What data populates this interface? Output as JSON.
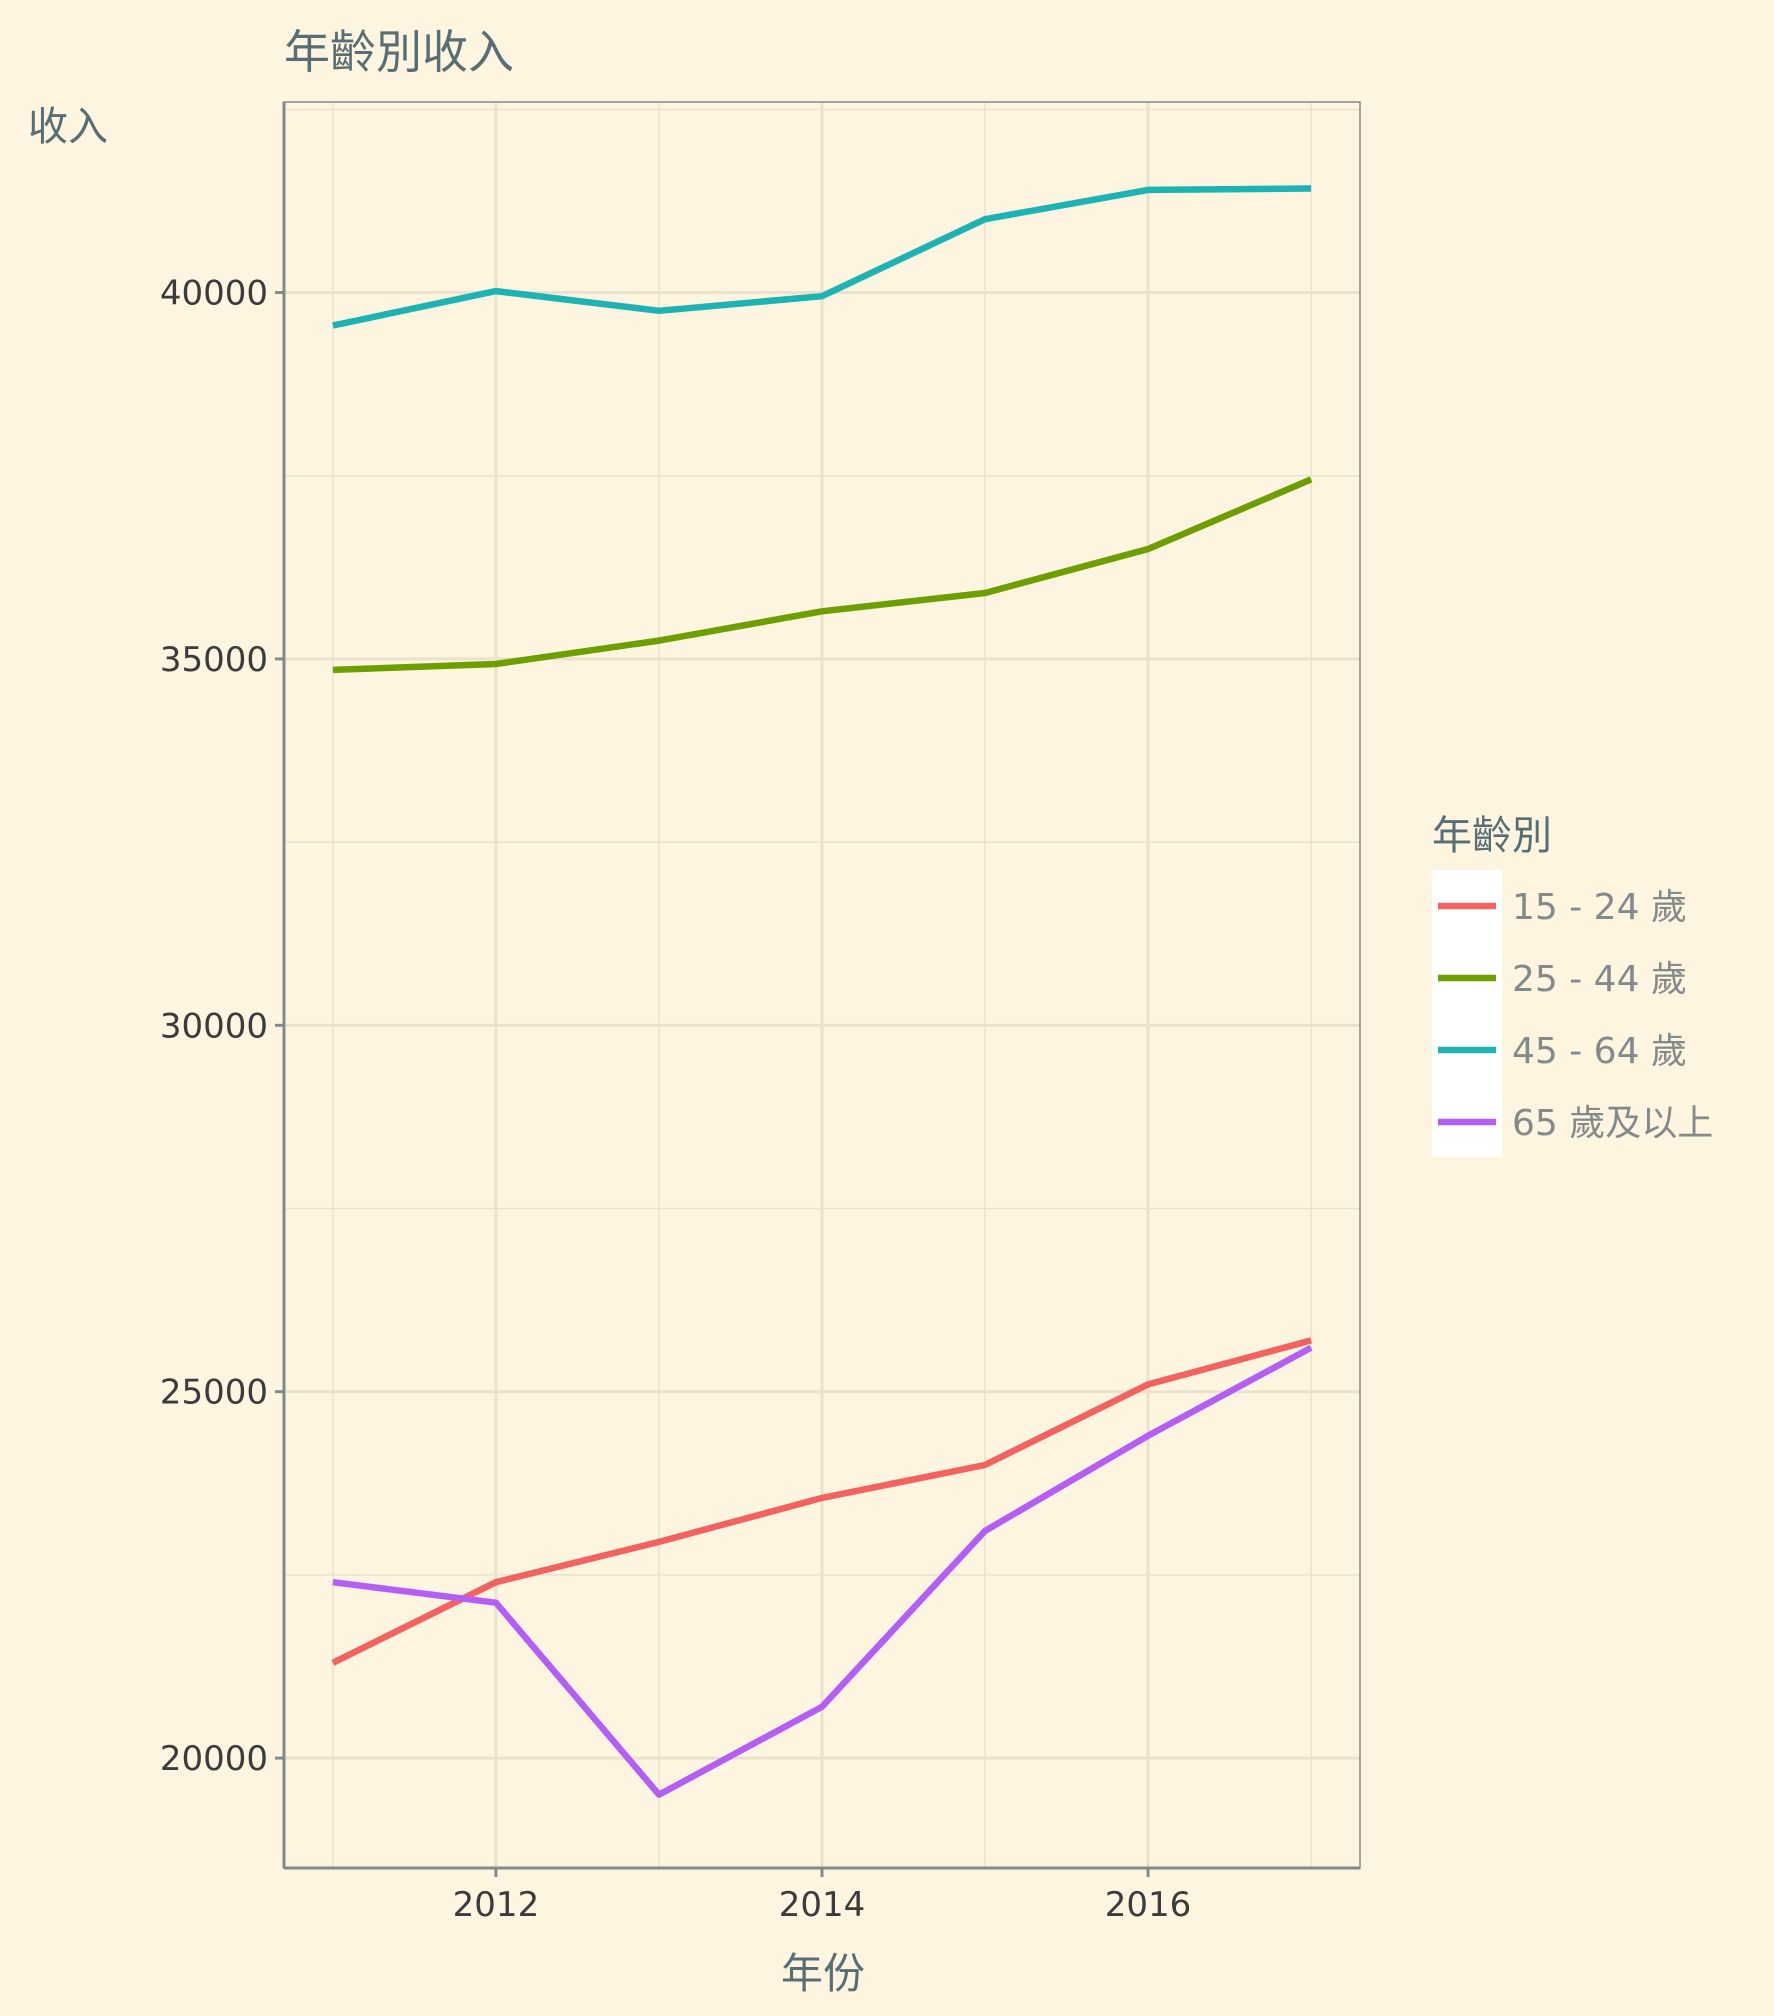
{
  "chart_data": {
    "type": "line",
    "title": "年齡別收入",
    "xlabel": "年份",
    "ylabel": "收入",
    "x": [
      2011,
      2012,
      2013,
      2014,
      2015,
      2016,
      2017
    ],
    "x_ticks": [
      2012,
      2014,
      2016
    ],
    "y_ticks": [
      20000,
      25000,
      30000,
      35000,
      40000
    ],
    "xlim": [
      2010.7,
      2017.3
    ],
    "ylim": [
      18500,
      42600
    ],
    "grid": true,
    "legend": {
      "title": "年齡別",
      "position": "right"
    },
    "series": [
      {
        "name": "15 - 24 歲",
        "color": "#f2635f",
        "values": [
          21300,
          22400,
          22950,
          23550,
          24000,
          25100,
          25700
        ]
      },
      {
        "name": "25 - 44 歲",
        "color": "#6d9f00",
        "values": [
          34850,
          34930,
          35250,
          35650,
          35900,
          36500,
          37450
        ]
      },
      {
        "name": "45 - 64 歲",
        "color": "#1db3b3",
        "values": [
          39550,
          40020,
          39750,
          39950,
          41000,
          41400,
          41420
        ]
      },
      {
        "name": "65 歲及以上",
        "color": "#b45ef4",
        "values": [
          22400,
          22120,
          19500,
          20700,
          23100,
          24400,
          25600
        ]
      }
    ]
  },
  "colors": {
    "background": "#fdf5df",
    "grid": "#eae2cc",
    "axis": "#84898a",
    "title_text": "#586e75",
    "tick_text": "#3b3b3b",
    "legend_text": "#84898a"
  }
}
